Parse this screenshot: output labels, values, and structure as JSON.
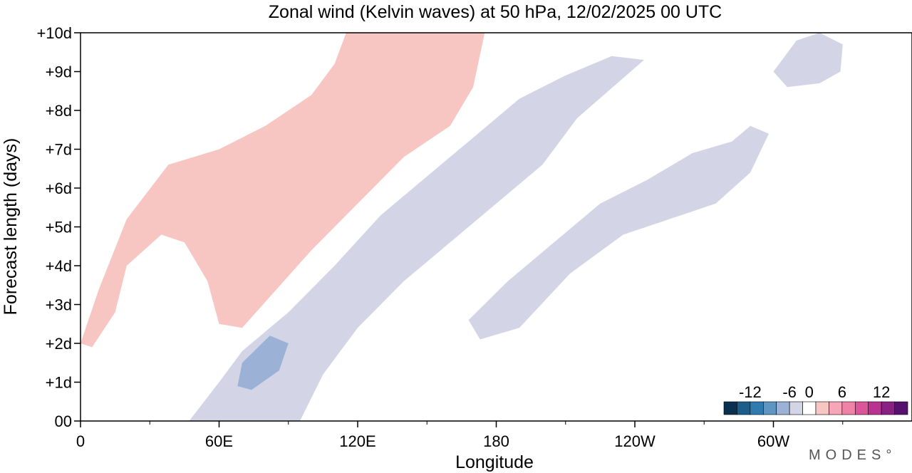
{
  "chart_data": {
    "type": "hovmoller",
    "title": "Zonal wind (Kelvin waves) at 50 hPa,  12/02/2025  00 UTC",
    "xlabel": "Longitude",
    "ylabel": "Forecast length (days)",
    "x_ticks": [
      "0",
      "60E",
      "120E",
      "180",
      "120W",
      "60W"
    ],
    "x_tick_values": [
      0,
      60,
      120,
      180,
      240,
      300
    ],
    "xlim": [
      0,
      360
    ],
    "y_ticks": [
      "00",
      "+1d",
      "+2d",
      "+3d",
      "+4d",
      "+5d",
      "+6d",
      "+7d",
      "+8d",
      "+9d",
      "+10d"
    ],
    "y_tick_values": [
      0,
      1,
      2,
      3,
      4,
      5,
      6,
      7,
      8,
      9,
      10
    ],
    "ylim": [
      0,
      10
    ],
    "colorbar": {
      "labels": [
        "-12",
        "-6",
        "0",
        "6",
        "12"
      ],
      "label_values": [
        -12,
        -6,
        0,
        6,
        12
      ],
      "levels": [
        -14,
        -12,
        -10,
        -8,
        -6,
        -4,
        -2,
        2,
        4,
        6,
        8,
        10,
        12,
        14
      ],
      "colors": [
        "#0a2f4f",
        "#1b5e8c",
        "#2f7bb0",
        "#5e95c2",
        "#9bb2d6",
        "#d3d5e6",
        "#ffffff",
        "#f8c6c2",
        "#f7a5b8",
        "#f082a8",
        "#dc5598",
        "#b93391",
        "#8a1f84",
        "#56106e"
      ]
    },
    "contour_features": [
      {
        "sign": "positive",
        "level": "2 to 4",
        "color": "#f8c6c2",
        "path_londay": [
          [
            0,
            2.0
          ],
          [
            8,
            3.4
          ],
          [
            20,
            5.2
          ],
          [
            38,
            6.6
          ],
          [
            60,
            7.0
          ],
          [
            80,
            7.6
          ],
          [
            100,
            8.4
          ],
          [
            110,
            9.2
          ],
          [
            115,
            10.0
          ],
          [
            175,
            10.0
          ],
          [
            170,
            8.6
          ],
          [
            160,
            7.6
          ],
          [
            140,
            6.8
          ],
          [
            120,
            5.6
          ],
          [
            100,
            4.4
          ],
          [
            85,
            3.4
          ],
          [
            70,
            2.4
          ],
          [
            60,
            2.5
          ],
          [
            55,
            3.6
          ],
          [
            45,
            4.6
          ],
          [
            35,
            4.8
          ],
          [
            20,
            4.0
          ],
          [
            15,
            2.8
          ],
          [
            5,
            1.9
          ]
        ]
      },
      {
        "sign": "negative",
        "level": "-2 to -4",
        "color": "#d3d5e6",
        "path_londay": [
          [
            47,
            0.0
          ],
          [
            60,
            1.0
          ],
          [
            70,
            1.8
          ],
          [
            90,
            2.8
          ],
          [
            110,
            4.0
          ],
          [
            130,
            5.3
          ],
          [
            150,
            6.3
          ],
          [
            170,
            7.3
          ],
          [
            190,
            8.3
          ],
          [
            210,
            8.9
          ],
          [
            230,
            9.4
          ],
          [
            244,
            9.3
          ],
          [
            215,
            7.8
          ],
          [
            200,
            6.6
          ],
          [
            180,
            5.6
          ],
          [
            160,
            4.6
          ],
          [
            140,
            3.6
          ],
          [
            120,
            2.4
          ],
          [
            105,
            1.2
          ],
          [
            95,
            0.0
          ]
        ]
      },
      {
        "sign": "negative",
        "level": "-2 to -4",
        "color": "#d3d5e6",
        "path_londay": [
          [
            168,
            2.6
          ],
          [
            185,
            3.6
          ],
          [
            205,
            4.6
          ],
          [
            225,
            5.6
          ],
          [
            245,
            6.2
          ],
          [
            265,
            6.9
          ],
          [
            282,
            7.2
          ],
          [
            290,
            7.6
          ],
          [
            298,
            7.4
          ],
          [
            290,
            6.4
          ],
          [
            275,
            5.6
          ],
          [
            255,
            5.2
          ],
          [
            235,
            4.8
          ],
          [
            212,
            3.8
          ],
          [
            190,
            2.4
          ],
          [
            173,
            2.1
          ]
        ]
      },
      {
        "sign": "negative",
        "level": "-2 to -4",
        "color": "#d3d5e6",
        "path_londay": [
          [
            300,
            9.0
          ],
          [
            310,
            9.8
          ],
          [
            320,
            10.0
          ],
          [
            330,
            9.7
          ],
          [
            329,
            9.0
          ],
          [
            320,
            8.7
          ],
          [
            306,
            8.6
          ]
        ]
      },
      {
        "sign": "negative",
        "level": "-4 to -6",
        "color": "#9bb2d6",
        "path_londay": [
          [
            68,
            0.9
          ],
          [
            70,
            1.5
          ],
          [
            82,
            2.2
          ],
          [
            90,
            2.0
          ],
          [
            86,
            1.3
          ],
          [
            74,
            0.8
          ]
        ]
      }
    ]
  }
}
